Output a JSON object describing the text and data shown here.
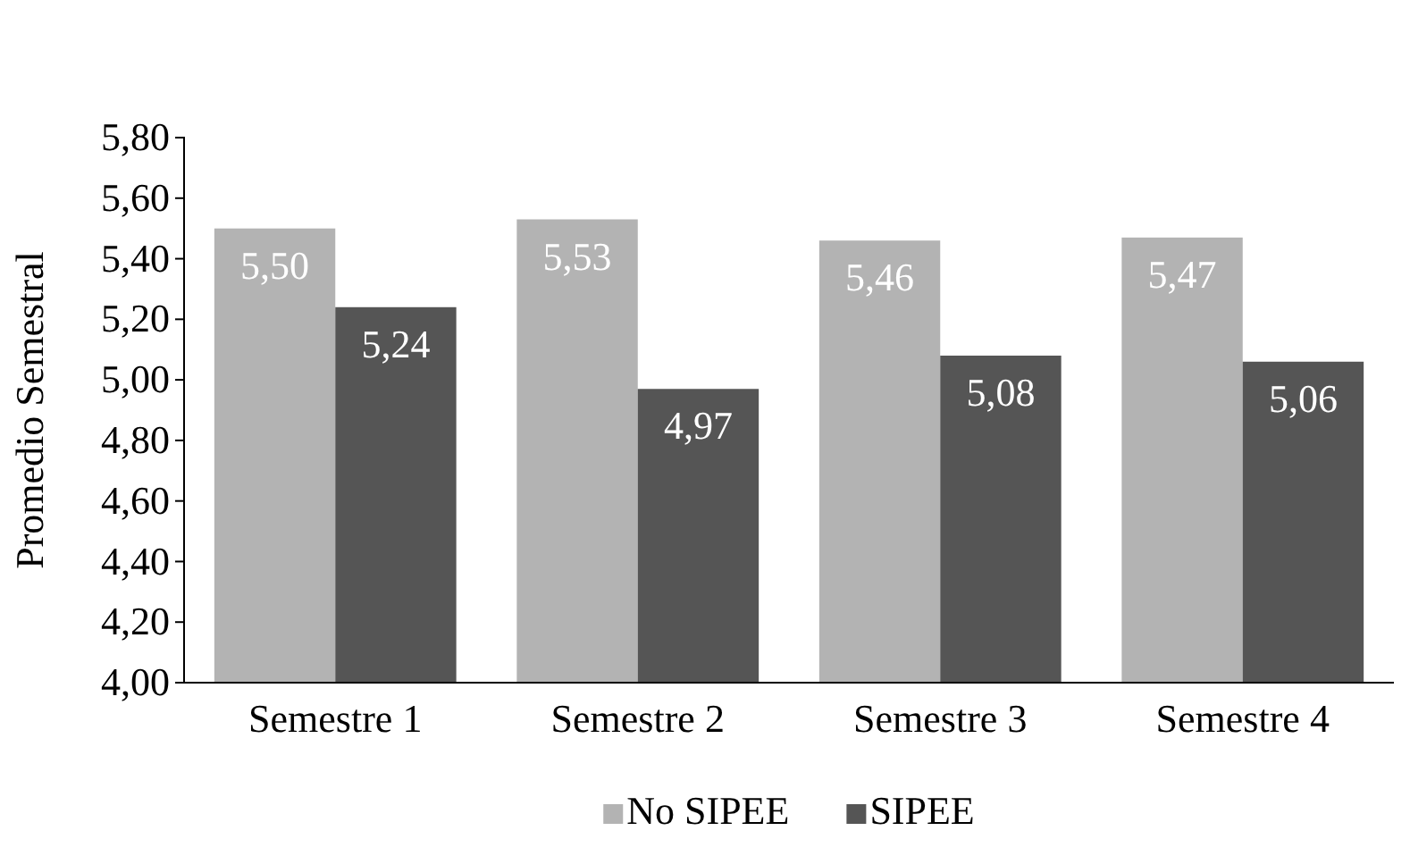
{
  "chart_data": {
    "type": "bar",
    "ylabel": "Promedio Semestral",
    "categories": [
      "Semestre 1",
      "Semestre 2",
      "Semestre 3",
      "Semestre 4"
    ],
    "series": [
      {
        "name": "No SIPEE",
        "color": "#b3b3b3",
        "values": [
          5.5,
          5.53,
          5.46,
          5.47
        ],
        "value_labels": [
          "5,50",
          "5,53",
          "5,46",
          "5,47"
        ]
      },
      {
        "name": "SIPEE",
        "color": "#555555",
        "values": [
          5.24,
          4.97,
          5.08,
          5.06
        ],
        "value_labels": [
          "5,24",
          "4,97",
          "5,08",
          "5,06"
        ]
      }
    ],
    "ylim": [
      4,
      5.8
    ],
    "yticks": [
      {
        "value": 4,
        "label": "4,00"
      },
      {
        "value": 4.2,
        "label": "4,20"
      },
      {
        "value": 4.4,
        "label": "4,40"
      },
      {
        "value": 4.6,
        "label": "4,60"
      },
      {
        "value": 4.8,
        "label": "4,80"
      },
      {
        "value": 5,
        "label": "5,00"
      },
      {
        "value": 5.2,
        "label": "5,20"
      },
      {
        "value": 5.4,
        "label": "5,40"
      },
      {
        "value": 5.6,
        "label": "5,60"
      },
      {
        "value": 5.8,
        "label": "5,80"
      }
    ],
    "grid": false,
    "legend": "bottom"
  }
}
